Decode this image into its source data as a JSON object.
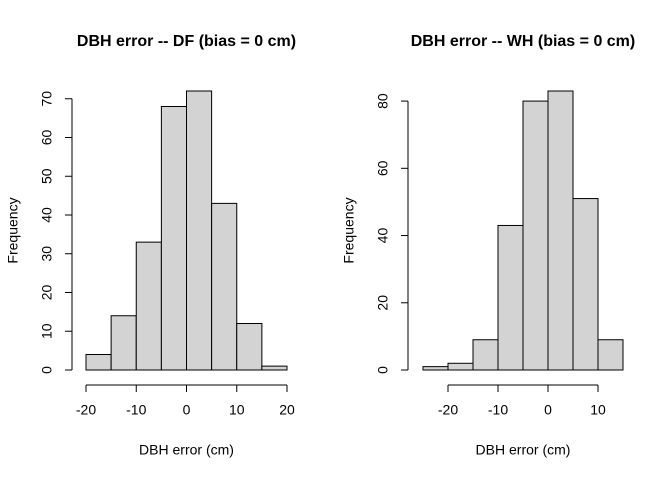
{
  "chart_data": [
    {
      "type": "histogram",
      "title": "DBH error -- DF (bias = 0 cm)",
      "x_label": "DBH error (cm)",
      "y_label": "Frequency",
      "bins": [
        -20,
        -15,
        -10,
        -5,
        0,
        5,
        10,
        15,
        20
      ],
      "values": [
        4,
        14,
        33,
        68,
        72,
        43,
        12,
        1
      ],
      "color": "#d3d3d3",
      "xlim": [
        -20,
        20
      ],
      "xticks": [
        -20,
        -10,
        0,
        10,
        20
      ],
      "ylim": [
        0,
        72
      ],
      "yticks": [
        0,
        10,
        20,
        30,
        40,
        50,
        60,
        70
      ]
    },
    {
      "type": "histogram",
      "title": "DBH error -- WH (bias = 0 cm)",
      "x_label": "DBH error (cm)",
      "y_label": "Frequency",
      "bins": [
        -25,
        -20,
        -15,
        -10,
        -5,
        0,
        5,
        10,
        15
      ],
      "values": [
        1,
        2,
        9,
        43,
        80,
        83,
        51,
        9
      ],
      "color": "#d3d3d3",
      "xlim": [
        -25,
        15
      ],
      "xticks": [
        -20,
        -10,
        0,
        10
      ],
      "ylim": [
        0,
        83
      ],
      "yticks": [
        0,
        20,
        40,
        60,
        80
      ]
    }
  ]
}
